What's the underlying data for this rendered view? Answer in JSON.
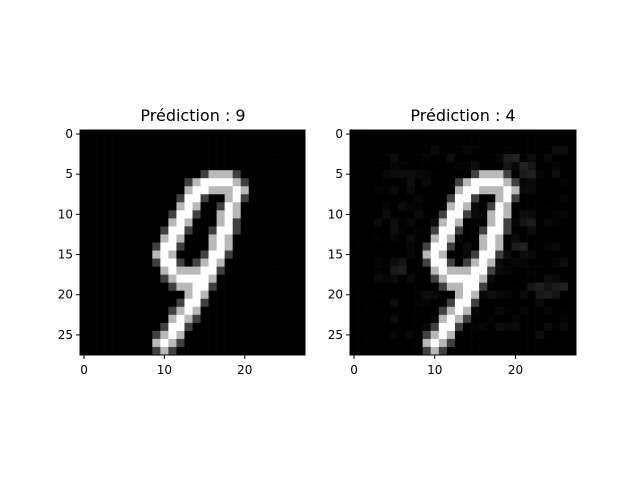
{
  "chart_data": [
    {
      "type": "heatmap",
      "title": "Prédiction : 9",
      "colormap": "gray",
      "x_ticks": [
        "0",
        "10",
        "20"
      ],
      "y_ticks": [
        "0",
        "5",
        "10",
        "15",
        "20",
        "25"
      ],
      "xlim": [
        -0.5,
        27.5
      ],
      "ylim": [
        27.5,
        -0.5
      ],
      "stroke_path": [
        [
          18,
          6
        ],
        [
          16,
          6
        ],
        [
          14,
          7
        ],
        [
          13,
          9
        ],
        [
          12,
          11
        ],
        [
          11,
          13
        ],
        [
          10,
          15
        ],
        [
          11,
          17
        ],
        [
          12,
          18
        ],
        [
          14,
          18
        ],
        [
          16,
          16
        ],
        [
          17,
          13
        ],
        [
          18,
          10
        ],
        [
          19,
          7
        ],
        [
          18,
          10
        ],
        [
          17,
          14
        ],
        [
          16,
          16
        ],
        [
          15,
          18
        ],
        [
          14,
          20
        ],
        [
          13,
          22
        ],
        [
          12,
          23
        ],
        [
          11,
          25
        ],
        [
          10,
          26
        ]
      ],
      "noise": false
    },
    {
      "type": "heatmap",
      "title": "Prédiction : 4",
      "colormap": "gray",
      "x_ticks": [
        "0",
        "10",
        "20"
      ],
      "y_ticks": [
        "0",
        "5",
        "10",
        "15",
        "20",
        "25"
      ],
      "xlim": [
        -0.5,
        27.5
      ],
      "ylim": [
        27.5,
        -0.5
      ],
      "stroke_path": [
        [
          18,
          6
        ],
        [
          16,
          6
        ],
        [
          14,
          7
        ],
        [
          13,
          9
        ],
        [
          12,
          11
        ],
        [
          11,
          13
        ],
        [
          10,
          15
        ],
        [
          11,
          17
        ],
        [
          12,
          18
        ],
        [
          14,
          18
        ],
        [
          16,
          16
        ],
        [
          17,
          13
        ],
        [
          18,
          10
        ],
        [
          19,
          7
        ],
        [
          18,
          10
        ],
        [
          17,
          14
        ],
        [
          16,
          16
        ],
        [
          15,
          18
        ],
        [
          14,
          20
        ],
        [
          13,
          22
        ],
        [
          12,
          23
        ],
        [
          11,
          25
        ],
        [
          10,
          26
        ]
      ],
      "noise": true
    }
  ]
}
